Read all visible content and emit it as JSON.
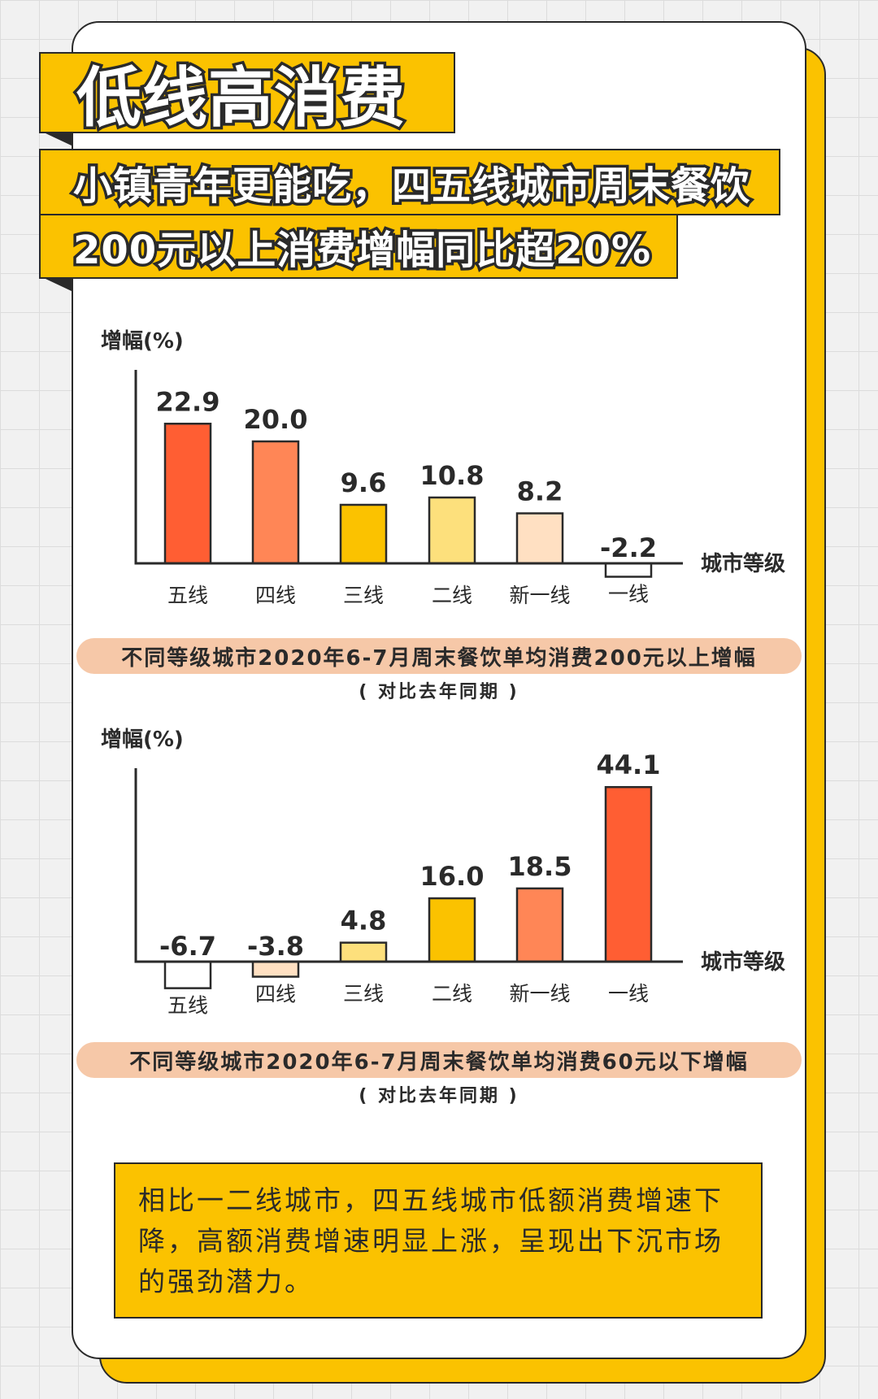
{
  "banner": {
    "title": "低线高消费",
    "line1": "小镇青年更能吃，四五线城市周末餐饮",
    "line2": "200元以上消费增幅同比超20%"
  },
  "chart_data": [
    {
      "type": "bar",
      "ylabel": "增幅(%)",
      "xlabel": "城市等级",
      "categories": [
        "五线",
        "四线",
        "三线",
        "二线",
        "新一线",
        "一线"
      ],
      "values": [
        22.9,
        20.0,
        9.6,
        10.8,
        8.2,
        -2.2
      ],
      "value_labels": [
        "22.9",
        "20.0",
        "9.6",
        "10.8",
        "8.2",
        "-2.2"
      ],
      "colors": [
        "#ff5e33",
        "#ff8656",
        "#fbc200",
        "#fde07c",
        "#ffe0c2",
        "#ffffff"
      ],
      "title": "不同等级城市2020年6-7月周末餐饮单均消费200元以上增幅",
      "subtitle": "( 对比去年同期 )",
      "ylim": [
        -5,
        32
      ]
    },
    {
      "type": "bar",
      "ylabel": "增幅(%)",
      "xlabel": "城市等级",
      "categories": [
        "五线",
        "四线",
        "三线",
        "二线",
        "新一线",
        "一线"
      ],
      "values": [
        -6.7,
        -3.8,
        4.8,
        16.0,
        18.5,
        44.1
      ],
      "value_labels": [
        "-6.7",
        "-3.8",
        "4.8",
        "16.0",
        "18.5",
        "44.1"
      ],
      "colors": [
        "#ffffff",
        "#ffe0c2",
        "#fde07c",
        "#fbc200",
        "#ff8656",
        "#ff5e33"
      ],
      "title": "不同等级城市2020年6-7月周末餐饮单均消费60元以下增幅",
      "subtitle": "( 对比去年同期 )",
      "ylim": [
        -8,
        55
      ]
    }
  ],
  "summary": "相比一二线城市，四五线城市低额消费增速下降，高额消费增速明显上涨，呈现出下沉市场的强劲潜力。",
  "colors": {
    "accent": "#fbc200",
    "ink": "#2a2a2a",
    "caption_bg": "#f6c8a8"
  }
}
